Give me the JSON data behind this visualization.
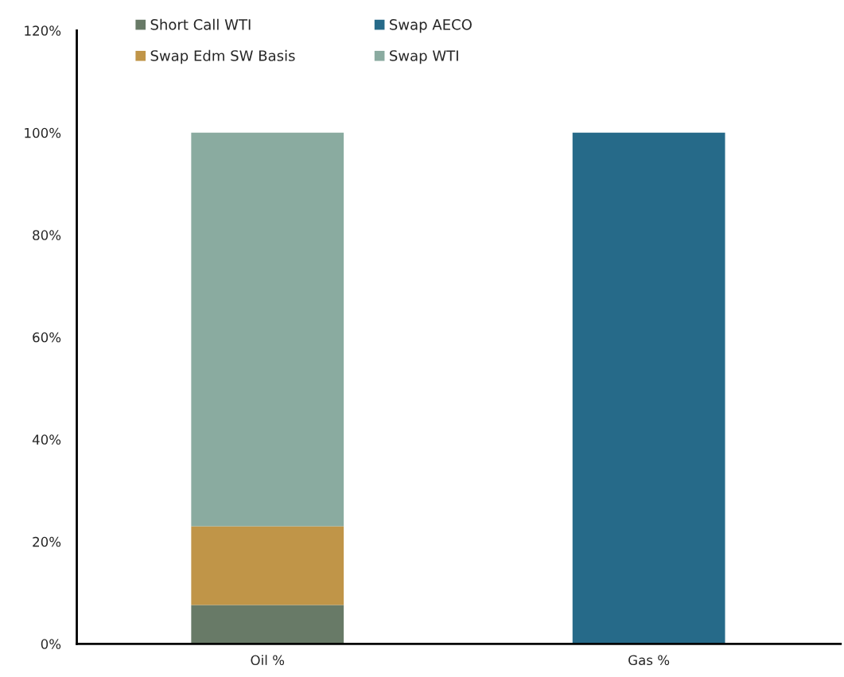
{
  "chart_data": {
    "type": "bar",
    "stacked": true,
    "categories": [
      "Oil %",
      "Gas %"
    ],
    "series": [
      {
        "name": "Short Call WTI",
        "color": "#687a67",
        "values": [
          7.6,
          null
        ]
      },
      {
        "name": "Swap AECO",
        "color": "#266a89",
        "values": [
          null,
          100
        ]
      },
      {
        "name": "Swap Edm SW Basis",
        "color": "#c09548",
        "values": [
          15.4,
          null
        ]
      },
      {
        "name": "Swap WTI",
        "color": "#8aaba0",
        "values": [
          77.0,
          null
        ]
      }
    ],
    "ylim": [
      0,
      120
    ],
    "yticks": [
      {
        "value": 0,
        "label": "0%"
      },
      {
        "value": 20,
        "label": "20%"
      },
      {
        "value": 40,
        "label": "40%"
      },
      {
        "value": 60,
        "label": "60%"
      },
      {
        "value": 80,
        "label": "80%"
      },
      {
        "value": 100,
        "label": "100%"
      },
      {
        "value": 120,
        "label": "120%"
      }
    ],
    "grid": false,
    "legend": "top"
  }
}
